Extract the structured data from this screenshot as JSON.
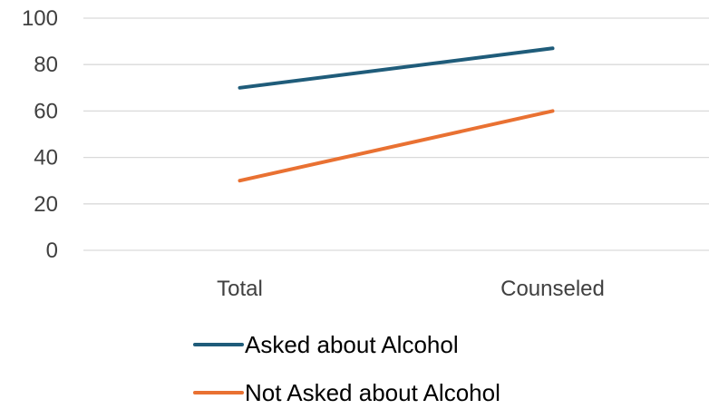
{
  "chart_data": {
    "type": "line",
    "categories": [
      "Total",
      "Counseled"
    ],
    "series": [
      {
        "name": "Asked about Alcohol",
        "values": [
          70,
          87
        ],
        "color": "#1F5C7A"
      },
      {
        "name": "Not Asked about Alcohol",
        "values": [
          30,
          60
        ],
        "color": "#E97132"
      }
    ],
    "ylim": [
      0,
      100
    ],
    "yticks": [
      0,
      20,
      40,
      60,
      80,
      100
    ],
    "grid": true,
    "legend_position": "bottom",
    "gridline_color": "#D9D9D9"
  }
}
